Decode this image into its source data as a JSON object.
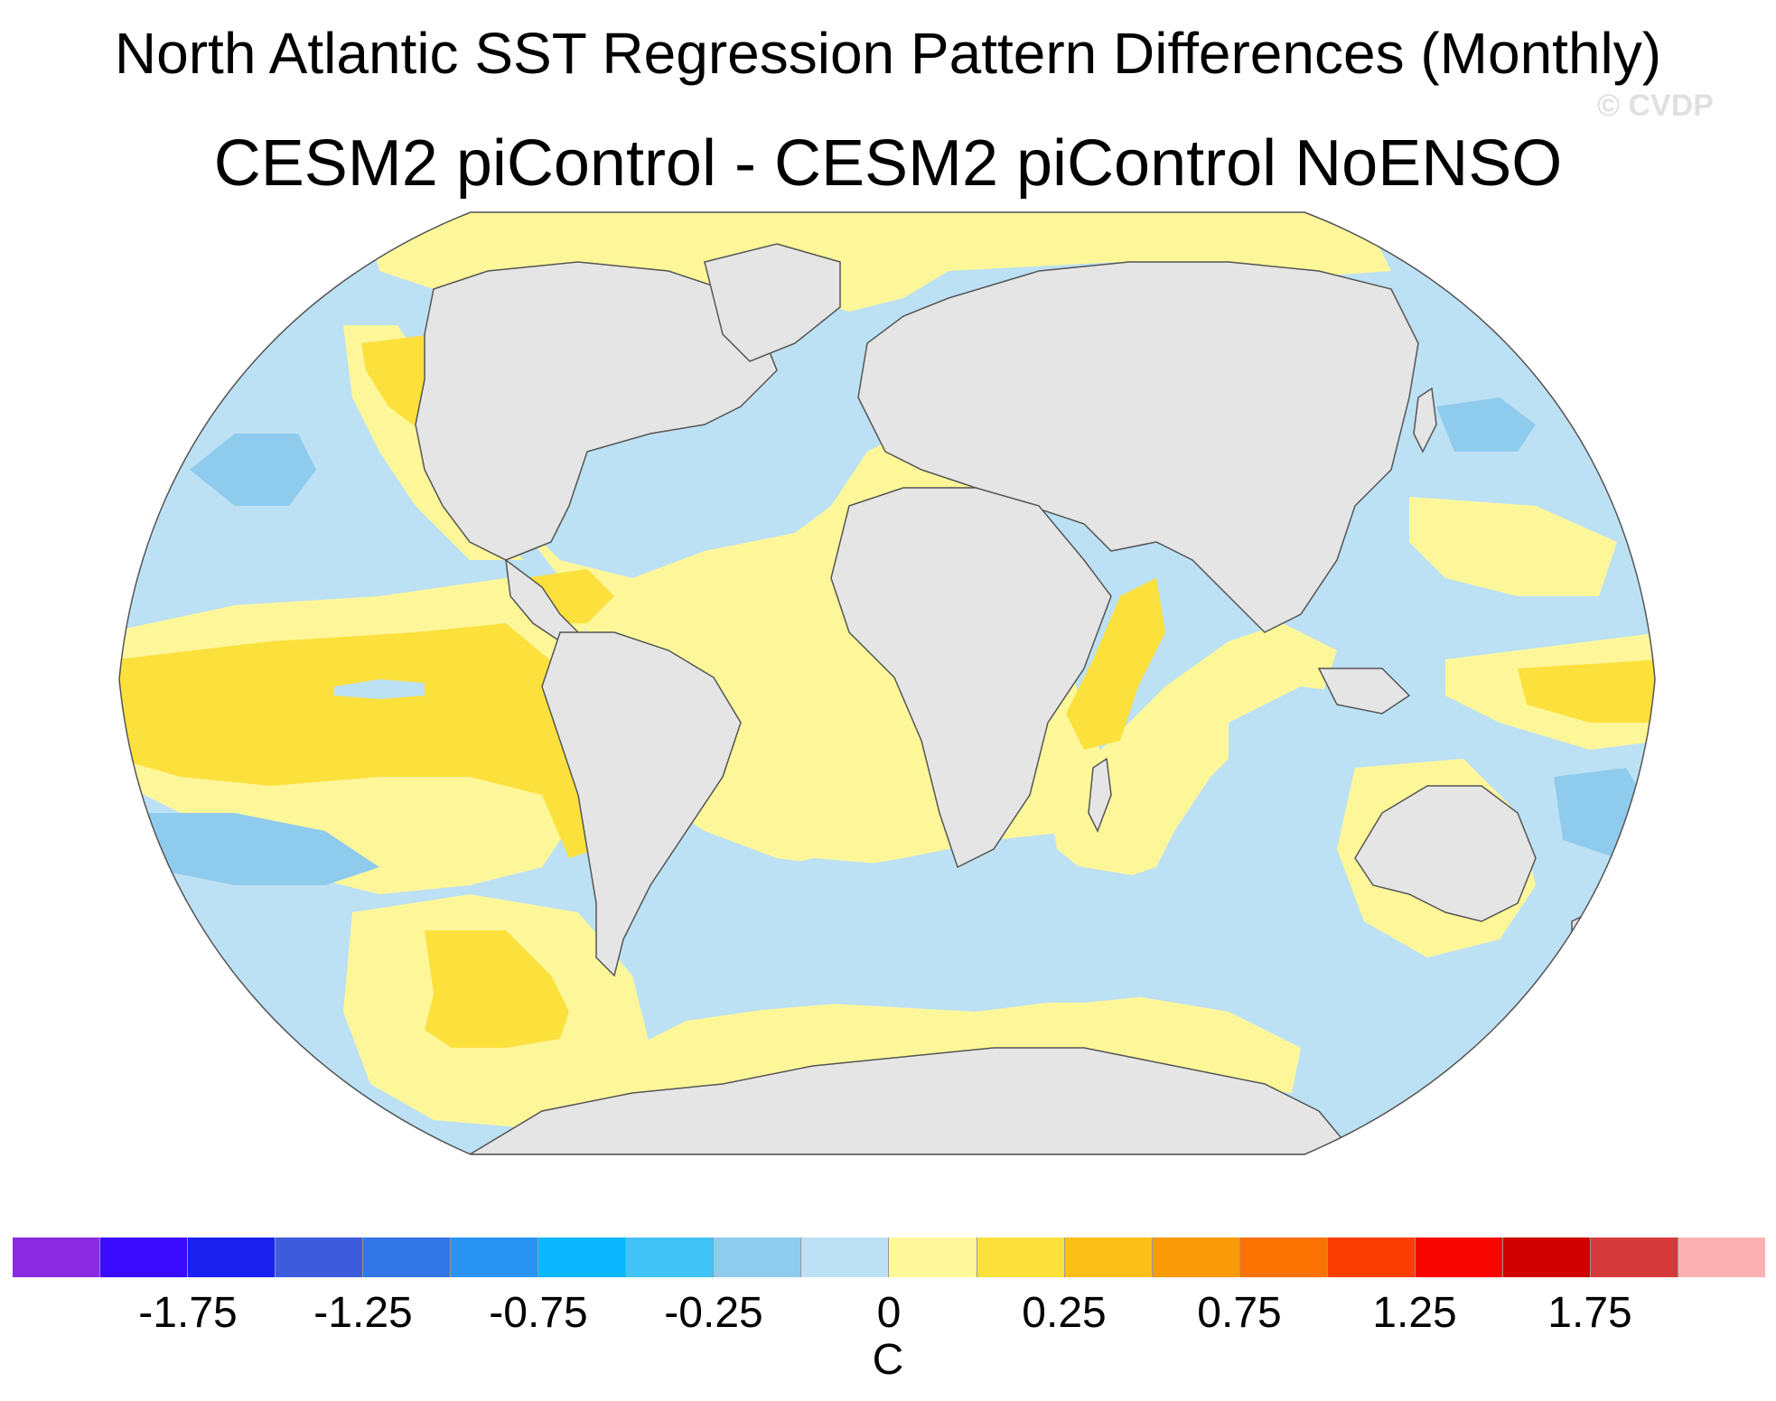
{
  "title": "North Atlantic SST Regression Pattern Differences (Monthly)",
  "subtitle": "CESM2 piControl - CESM2 piControl NoENSO",
  "watermark": "© CVDP",
  "map": {
    "projection": "Robinson",
    "land_color": "#e5e5e5",
    "ocean_background_color": "#bde1f4",
    "regions": [
      {
        "name": "north-pacific-negative",
        "level": "-0.25 to 0",
        "color": "#bde1f4"
      },
      {
        "name": "north-pacific-strong-negative",
        "level": "-0.5 to -0.25",
        "color": "#8fcbed"
      },
      {
        "name": "tropical-pacific-positive",
        "level": "0.25 to 0.5",
        "color": "#fce03c"
      },
      {
        "name": "south-pacific-positive",
        "level": "0.25 to 0.5",
        "color": "#fce03c"
      },
      {
        "name": "atlantic-positive",
        "level": "0 to 0.25",
        "color": "#fdf79a"
      },
      {
        "name": "north-atlantic-negative",
        "level": "-0.25 to 0",
        "color": "#bde1f4"
      },
      {
        "name": "southern-ocean-negative",
        "level": "-0.25 to 0",
        "color": "#bde1f4"
      },
      {
        "name": "indian-ocean-positive",
        "level": "0.25 to 0.5",
        "color": "#fce03c"
      }
    ]
  },
  "colorbar": {
    "colors": [
      "#8a2be2",
      "#3a0bff",
      "#1b22f0",
      "#3d5bdc",
      "#3277e5",
      "#2a94f5",
      "#0ab7ff",
      "#40c3f5",
      "#8fcbed",
      "#bde1f4",
      "#fdf79a",
      "#fce03c",
      "#fbbf17",
      "#fb9a07",
      "#fb7303",
      "#fb3e01",
      "#f80500",
      "#d00000",
      "#d53a3a",
      "#fbb1b1"
    ],
    "ticks": [
      {
        "label": "-1.75",
        "index": 2
      },
      {
        "label": "-1.25",
        "index": 4
      },
      {
        "label": "-0.75",
        "index": 6
      },
      {
        "label": "-0.25",
        "index": 8
      },
      {
        "label": "0",
        "index": 10
      },
      {
        "label": "0.25",
        "index": 12
      },
      {
        "label": "0.75",
        "index": 14
      },
      {
        "label": "1.25",
        "index": 16
      },
      {
        "label": "1.75",
        "index": 18
      }
    ],
    "units": "C"
  }
}
